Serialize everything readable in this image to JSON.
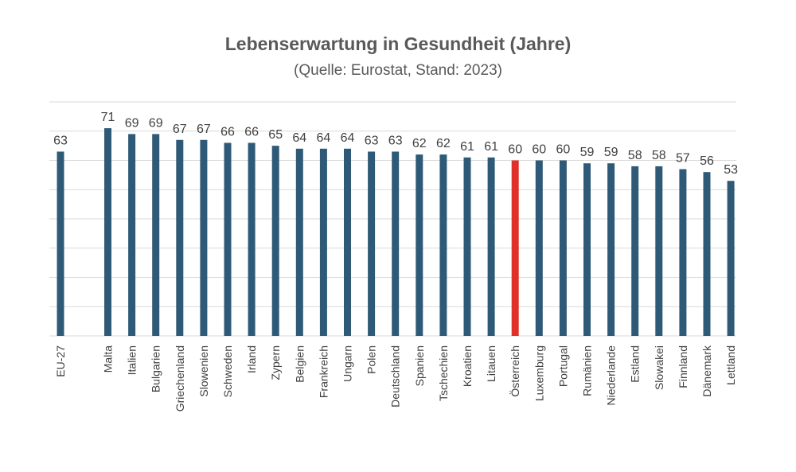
{
  "chart_data": {
    "type": "bar",
    "title": "Lebenserwartung in Gesundheit (Jahre)",
    "subtitle": "(Quelle: Eurostat, Stand: 2023)",
    "xlabel": "",
    "ylabel": "",
    "ylim": [
      0,
      80
    ],
    "grid": true,
    "categories": [
      "EU-27",
      "Malta",
      "Italien",
      "Bulgarien",
      "Griechenland",
      "Slowenien",
      "Schweden",
      "Irland",
      "Zypern",
      "Belgien",
      "Frankreich",
      "Ungarn",
      "Polen",
      "Deutschland",
      "Spanien",
      "Tschechien",
      "Kroatien",
      "Litauen",
      "Österreich",
      "Luxemburg",
      "Portugal",
      "Rumänien",
      "Niederlande",
      "Estland",
      "Slowakei",
      "Finnland",
      "Dänemark",
      "Lettland"
    ],
    "values": [
      63,
      71,
      69,
      69,
      67,
      67,
      66,
      66,
      65,
      64,
      64,
      64,
      63,
      63,
      62,
      62,
      61,
      61,
      60,
      60,
      60,
      59,
      59,
      58,
      58,
      57,
      56,
      53
    ],
    "value_labels": [
      "63",
      "71",
      "69",
      "69",
      "67",
      "67",
      "66",
      "66",
      "65",
      "64",
      "64",
      "64",
      "63",
      "63",
      "62",
      "62",
      "61",
      "61",
      "60",
      "60",
      "60",
      "59",
      "59",
      "58",
      "58",
      "57",
      "56",
      "53"
    ],
    "highlight_category": "Österreich",
    "colors": {
      "bar": "#2e5a78",
      "highlight": "#e0302a",
      "highlight_label": "#e0302a"
    }
  }
}
